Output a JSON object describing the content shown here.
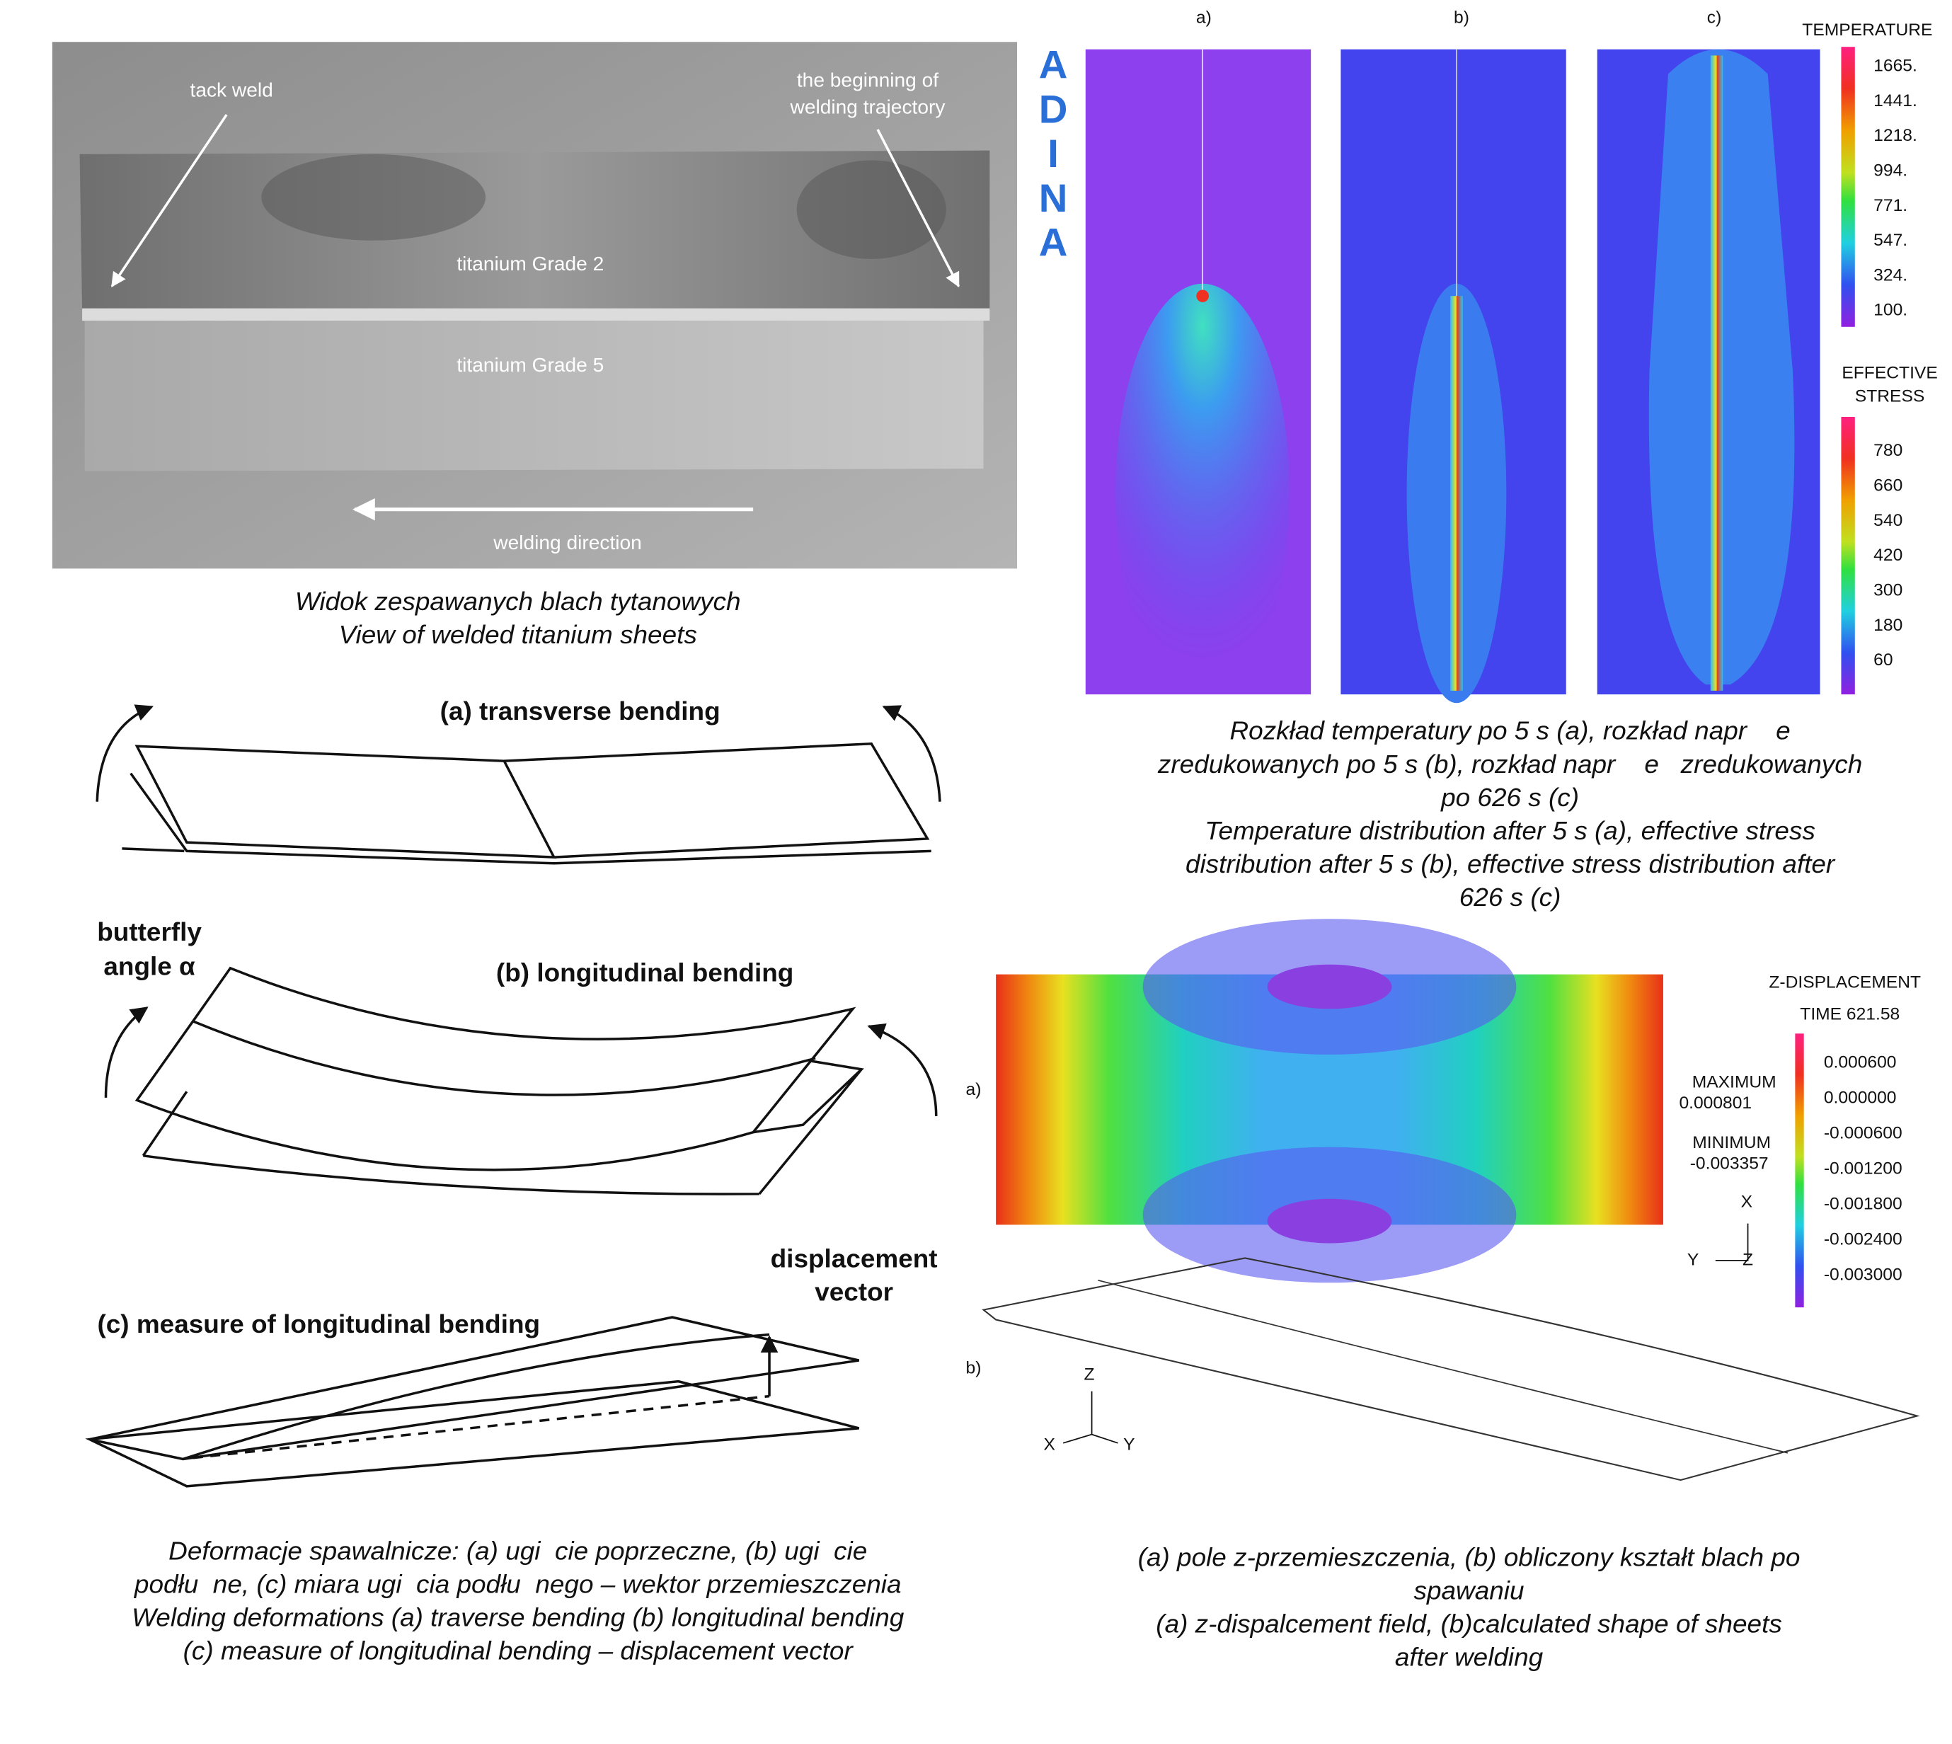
{
  "photo": {
    "labels": {
      "tack_weld": "tack weld",
      "beginning": [
        "the beginning of",
        "welding trajectory"
      ],
      "upper_sheet": "titanium Grade 2",
      "lower_sheet": "titanium Grade 5",
      "direction": "welding direction"
    },
    "caption": [
      "Widok zespawanych blach tytanowych",
      "View of welded titanium sheets"
    ]
  },
  "simulation": {
    "panels": [
      "a)",
      "b)",
      "c)"
    ],
    "logo": [
      "A",
      "D",
      "I",
      "N",
      "A"
    ],
    "temperature_legend": {
      "title": "TEMPERATURE",
      "ticks": [
        "1665.",
        "1441.",
        "1218.",
        "994.",
        "771.",
        "547.",
        "324.",
        "100."
      ]
    },
    "stress_legend": {
      "title": [
        "EFFECTIVE",
        "STRESS"
      ],
      "ticks": [
        "780",
        "660",
        "540",
        "420",
        "300",
        "180",
        "60"
      ]
    },
    "caption": [
      "Rozkład temperatury po 5 s (a), rozkład napr    e",
      "zredukowanych po 5 s (b), rozkład napr    e   zredukowanych",
      "po 626 s (c)",
      "Temperature distribution after 5 s (a), effective stress",
      "distribution after 5 s (b), effective stress distribution after",
      "626 s (c)"
    ]
  },
  "deformations": {
    "transverse": "(a) transverse bending",
    "butterfly": [
      "butterfly",
      "angle α"
    ],
    "longitudinal": "(b) longitudinal bending",
    "displacement": [
      "displacement",
      "vector"
    ],
    "measure": "(c) measure of longitudinal bending",
    "caption": [
      "Deformacje spawalnicze: (a) ugi  cie poprzeczne, (b) ugi  cie",
      "podłu  ne, (c) miara ugi  cia podłu  nego – wektor przemieszczenia",
      "Welding deformations (a) traverse bending (b) longitudinal bending",
      "(c) measure of longitudinal bending – displacement vector"
    ]
  },
  "z_displacement": {
    "title": "Z-DISPLACEMENT",
    "time": "TIME 621.58",
    "maximum": {
      "label": "MAXIMUM",
      "value": "0.000801"
    },
    "minimum": {
      "label": "MINIMUM",
      "value": "-0.003357"
    },
    "ticks": [
      "0.000600",
      "0.000000",
      "-0.000600",
      "-0.001200",
      "-0.001800",
      "-0.002400",
      "-0.003000"
    ],
    "axes": {
      "x": "X",
      "y": "Y",
      "z": "Z"
    },
    "panels": [
      "a)",
      "b)"
    ],
    "triad": {
      "z": "Z",
      "x": "X",
      "y": "Y"
    },
    "caption": [
      "(a) pole z-przemieszczenia, (b) obliczony kształt blach po",
      "spawaniu",
      "(a) z-dispalcement field, (b)calculated shape of sheets",
      "after welding"
    ]
  }
}
